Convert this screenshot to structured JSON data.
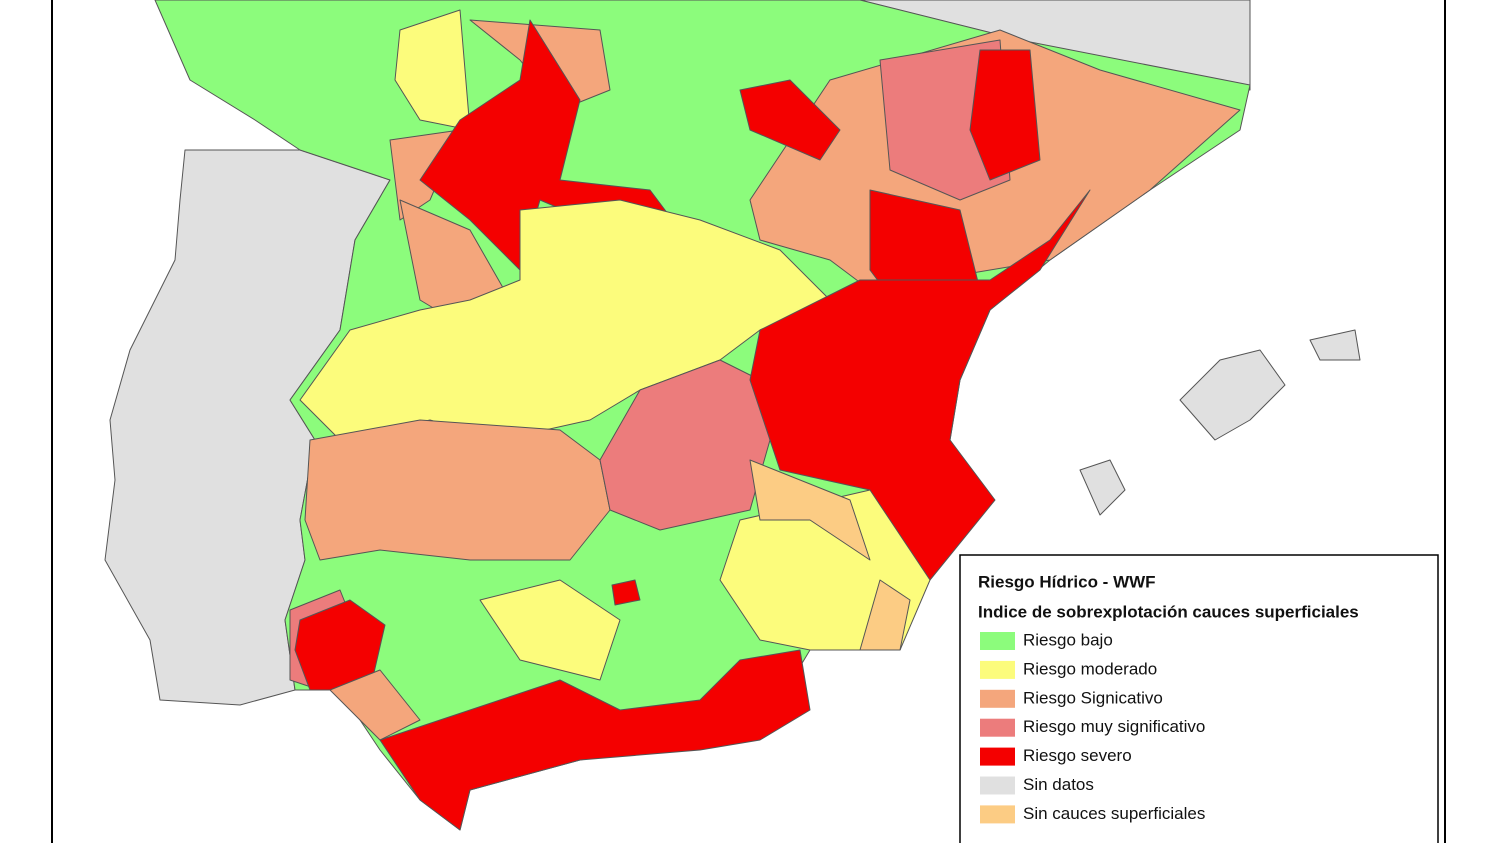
{
  "legend": {
    "title": "Riesgo Hídrico - WWF",
    "subtitle": "Indice de sobrexplotación cauces superficiales",
    "items": [
      {
        "label": "Riesgo bajo",
        "color": "#8cfc7c"
      },
      {
        "label": "Riesgo moderado",
        "color": "#fcfc7c"
      },
      {
        "label": "Riesgo Signicativo",
        "color": "#f4a67c"
      },
      {
        "label": "Riesgo muy significativo",
        "color": "#ec7c7c"
      },
      {
        "label": "Riesgo severo",
        "color": "#f40000"
      },
      {
        "label": "Sin datos",
        "color": "#e0e0e0"
      },
      {
        "label": "Sin cauces superficiales",
        "color": "#fccc84"
      }
    ]
  }
}
